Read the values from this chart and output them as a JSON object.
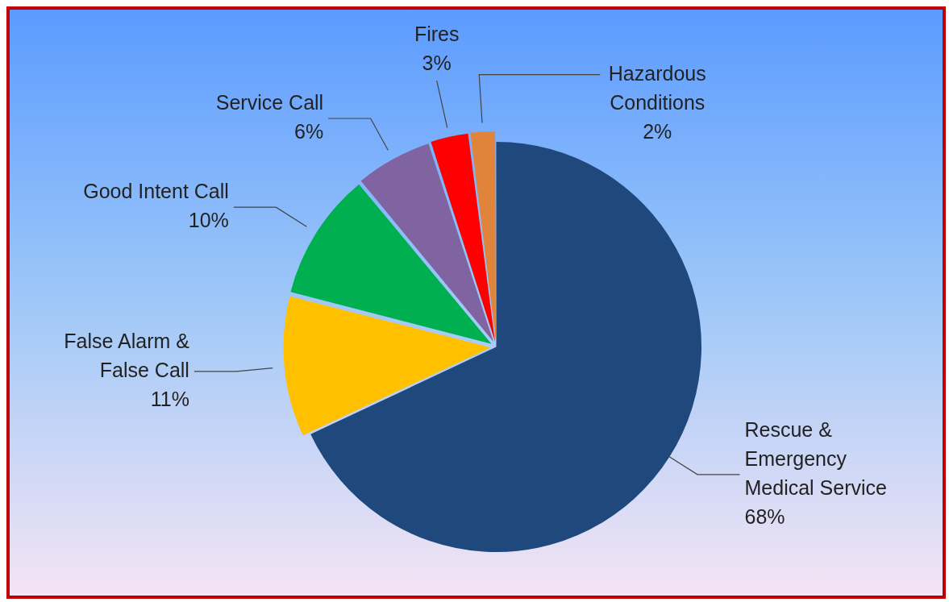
{
  "chart_data": {
    "type": "pie",
    "categories": [
      "Rescue & Emergency Medical Service",
      "False Alarm & False Call",
      "Good Intent Call",
      "Service Call",
      "Fires",
      "Hazardous Conditions"
    ],
    "values": [
      68,
      11,
      10,
      6,
      3,
      2
    ],
    "colors": [
      "#1f497d",
      "#ffc000",
      "#00b050",
      "#8064a2",
      "#ff0000",
      "#e0843c"
    ],
    "legend": false,
    "value_labels": [
      "68%",
      "11%",
      "10%",
      "6%",
      "3%",
      "2%"
    ]
  }
}
